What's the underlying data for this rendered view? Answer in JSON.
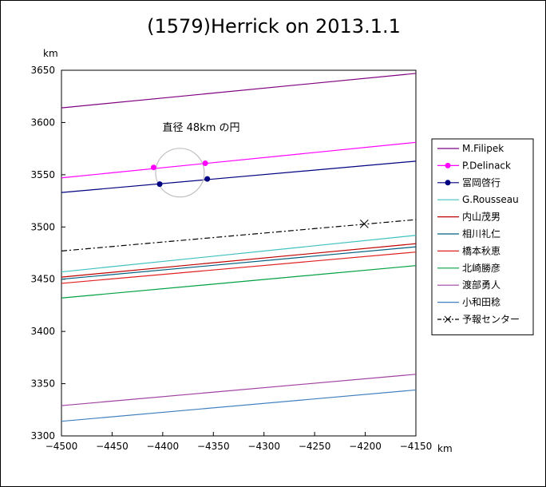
{
  "chart_data": {
    "type": "line",
    "title": "(1579)Herrick on 2013.1.1",
    "xunit": "km",
    "yunit": "km",
    "xlim": [
      -4500,
      -4150
    ],
    "ylim": [
      3300,
      3650
    ],
    "xticks": [
      -4500,
      -4450,
      -4400,
      -4350,
      -4300,
      -4250,
      -4200,
      -4150
    ],
    "yticks": [
      3300,
      3350,
      3400,
      3450,
      3500,
      3550,
      3600,
      3650
    ],
    "grid": false,
    "legend_position": "right",
    "annotation": "直径 48km の円",
    "circle": {
      "center": [
        -4383,
        3552
      ],
      "radius": 24,
      "color": "#c0c0c0"
    },
    "series": [
      {
        "name": "M.Filipek",
        "color": "#800080",
        "style": "solid",
        "x": [
          -4500,
          -4150
        ],
        "y": [
          3614,
          3647
        ]
      },
      {
        "name": "P.Delinack",
        "color": "#ff00ff",
        "style": "solid",
        "marker": "dot",
        "x": [
          -4500,
          -4150
        ],
        "y": [
          3547,
          3581
        ],
        "points": [
          {
            "x": -4409,
            "y": 3557
          },
          {
            "x": -4358,
            "y": 3561
          }
        ]
      },
      {
        "name": "冨岡啓行",
        "color": "#000080",
        "style": "solid",
        "marker": "dot",
        "x": [
          -4500,
          -4150
        ],
        "y": [
          3533,
          3563
        ],
        "points": [
          {
            "x": -4403,
            "y": 3541
          },
          {
            "x": -4356,
            "y": 3546
          }
        ]
      },
      {
        "name": "G.Rousseau",
        "color": "#40c0c0",
        "style": "solid",
        "x": [
          -4500,
          -4150
        ],
        "y": [
          3457,
          3492
        ]
      },
      {
        "name": "内山茂男",
        "color": "#c00000",
        "style": "solid",
        "x": [
          -4500,
          -4150
        ],
        "y": [
          3452,
          3484
        ]
      },
      {
        "name": "相川礼仁",
        "color": "#006080",
        "style": "solid",
        "x": [
          -4500,
          -4150
        ],
        "y": [
          3450,
          3481
        ]
      },
      {
        "name": "橋本秋恵",
        "color": "#e02020",
        "style": "solid",
        "x": [
          -4500,
          -4150
        ],
        "y": [
          3446,
          3476
        ]
      },
      {
        "name": "北崎勝彦",
        "color": "#00a040",
        "style": "solid",
        "x": [
          -4500,
          -4150
        ],
        "y": [
          3432,
          3463
        ]
      },
      {
        "name": "渡部勇人",
        "color": "#a040a0",
        "style": "solid",
        "x": [
          -4500,
          -4150
        ],
        "y": [
          3329,
          3359
        ]
      },
      {
        "name": "小和田稔",
        "color": "#4080c0",
        "style": "solid",
        "x": [
          -4500,
          -4150
        ],
        "y": [
          3314,
          3344
        ]
      },
      {
        "name": "予報センター",
        "color": "#000000",
        "style": "dashdot",
        "marker": "cross",
        "x": [
          -4500,
          -4150
        ],
        "y": [
          3477,
          3507
        ],
        "points": [
          {
            "x": -4201,
            "y": 3503
          }
        ]
      }
    ]
  }
}
